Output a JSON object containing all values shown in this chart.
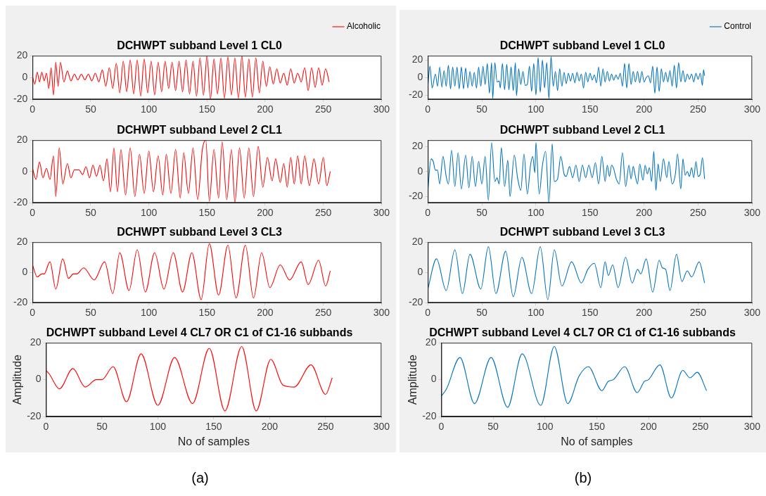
{
  "chart_data": [
    {
      "type": "line",
      "title": "DCHWPT subband Level 1 CL0",
      "legend": "top right",
      "xlim": [
        0,
        300
      ],
      "xticks": [
        0,
        50,
        100,
        150,
        200,
        250,
        300
      ],
      "ylim": [
        -20,
        20
      ],
      "yticks": [
        -20,
        0,
        20
      ],
      "series": [
        {
          "name": "Alcoholic",
          "color": "#ff0000",
          "x": [
            0,
            2,
            4,
            6,
            8,
            10,
            12,
            14,
            16,
            18,
            20,
            22,
            24,
            27,
            30,
            33,
            36,
            39,
            42,
            45,
            48,
            51,
            54,
            57,
            60,
            63,
            66,
            69,
            72,
            75,
            78,
            81,
            84,
            87,
            90,
            93,
            96,
            99,
            102,
            105,
            108,
            111,
            114,
            117,
            120,
            123,
            126,
            129,
            132,
            135,
            138,
            141,
            144,
            147,
            150,
            153,
            156,
            159,
            162,
            165,
            168,
            171,
            174,
            177,
            180,
            183,
            186,
            189,
            192,
            195,
            198,
            201,
            204,
            207,
            210,
            213,
            216,
            219,
            222,
            225,
            228,
            231,
            234,
            237,
            240,
            243,
            246,
            249,
            252,
            255
          ],
          "values": [
            1,
            -6,
            5,
            -4,
            5,
            -3,
            4,
            -10,
            9,
            -16,
            14,
            -8,
            14,
            -4,
            6,
            -3,
            3,
            -2,
            3,
            -2,
            3,
            -3,
            4,
            -4,
            7,
            -8,
            9,
            -10,
            13,
            -14,
            15,
            -13,
            16,
            -15,
            16,
            -17,
            17,
            -14,
            15,
            -16,
            14,
            -13,
            15,
            -10,
            14,
            -12,
            15,
            -13,
            16,
            -15,
            15,
            -17,
            18,
            -16,
            20,
            -20,
            17,
            -15,
            18,
            -19,
            19,
            -16,
            18,
            -19,
            20,
            -18,
            17,
            -18,
            18,
            -14,
            15,
            -8,
            10,
            -6,
            8,
            -5,
            4,
            -7,
            8,
            -5,
            4,
            -4,
            9,
            -12,
            9,
            -9,
            9,
            -7,
            8,
            -4
          ]
        }
      ]
    },
    {
      "type": "line",
      "title": "DCHWPT subband Level 2 CL1",
      "xlim": [
        0,
        300
      ],
      "xticks": [
        0,
        50,
        100,
        150,
        200,
        250,
        300
      ],
      "ylim": [
        -20,
        20
      ],
      "yticks": [
        -20,
        0,
        20
      ],
      "series": [
        {
          "color": "#ff0000",
          "x": [
            0,
            3,
            6,
            9,
            12,
            15,
            18,
            20,
            23,
            26,
            30,
            33,
            36,
            40,
            43,
            46,
            49,
            52,
            55,
            58,
            61,
            64,
            67,
            70,
            73,
            76,
            80,
            84,
            88,
            92,
            96,
            100,
            104,
            108,
            112,
            115,
            119,
            123,
            127,
            130,
            134,
            138,
            142,
            146,
            149,
            152,
            156,
            160,
            163,
            167,
            171,
            174,
            178,
            182,
            186,
            190,
            194,
            198,
            202,
            206,
            209,
            213,
            216,
            219,
            222,
            225,
            228,
            231,
            234,
            238,
            242,
            246,
            250,
            253,
            256
          ],
          "values": [
            2,
            -5,
            6,
            -4,
            2,
            -5,
            10,
            -16,
            15,
            -8,
            5,
            -4,
            1,
            1,
            -2,
            3,
            -4,
            4,
            -3,
            4,
            -6,
            8,
            -13,
            15,
            -13,
            14,
            -15,
            15,
            -16,
            11,
            -14,
            13,
            -13,
            10,
            -15,
            11,
            -14,
            14,
            -17,
            12,
            -14,
            15,
            -18,
            14,
            20,
            -19,
            14,
            -17,
            19,
            -18,
            14,
            -20,
            15,
            -17,
            15,
            -16,
            16,
            -10,
            9,
            -6,
            8,
            -7,
            5,
            -10,
            9,
            -8,
            10,
            -8,
            10,
            -9,
            8,
            -8,
            9,
            -9,
            0
          ]
        }
      ]
    },
    {
      "type": "line",
      "title": "DCHWPT subband Level 3 CL3",
      "xlim": [
        0,
        300
      ],
      "xticks": [
        0,
        50,
        100,
        150,
        200,
        250,
        300
      ],
      "ylim": [
        -20,
        20
      ],
      "yticks": [
        -20,
        0,
        20
      ],
      "series": [
        {
          "color": "#ff0000",
          "x": [
            0,
            4,
            8,
            10,
            15,
            20,
            26,
            31,
            35,
            38,
            44,
            53,
            62,
            69,
            75,
            83,
            90,
            97,
            105,
            113,
            121,
            129,
            137,
            145,
            152,
            160,
            168,
            175,
            183,
            190,
            197,
            204,
            213,
            221,
            231,
            237,
            246,
            252,
            256
          ],
          "values": [
            5,
            -3,
            -1,
            -1,
            7,
            -11,
            9,
            -4,
            -1,
            -1,
            3,
            -5,
            7,
            -14,
            13,
            -12,
            15,
            -13,
            13,
            -11,
            13,
            -13,
            13,
            -18,
            19,
            -15,
            18,
            -17,
            18,
            -17,
            13,
            -10,
            5,
            -5,
            7,
            -8,
            8,
            -9,
            1
          ]
        }
      ]
    },
    {
      "type": "line",
      "title": "DCHWPT subband Level 4 CL7 OR C1 of C1-16 subbands",
      "xlabel": "No of samples",
      "ylabel": "Amplitude",
      "xlim": [
        0,
        300
      ],
      "xticks": [
        0,
        50,
        100,
        150,
        200,
        250,
        300
      ],
      "ylim": [
        -20,
        20
      ],
      "yticks": [
        -20,
        0,
        20
      ],
      "annotations": [
        "(a)"
      ],
      "series": [
        {
          "color": "#ff0000",
          "x": [
            0,
            3,
            12,
            24,
            35,
            45,
            50,
            60,
            72,
            85,
            100,
            115,
            131,
            146,
            160,
            175,
            188,
            201,
            212,
            222,
            237,
            250,
            256
          ],
          "values": [
            5,
            3,
            -5,
            6,
            -4,
            0,
            0,
            7,
            -12,
            14,
            -14,
            12,
            -13,
            17,
            -17,
            18,
            -17,
            11,
            -3,
            -4,
            8,
            -8,
            1
          ]
        }
      ]
    },
    {
      "type": "line",
      "title": "DCHWPT subband Level 1 CL0",
      "legend": "top right",
      "xlim": [
        0,
        300
      ],
      "xticks": [
        0,
        50,
        100,
        150,
        200,
        250,
        300
      ],
      "ylim": [
        -25,
        25
      ],
      "yticks": [
        -20,
        0,
        20
      ],
      "series": [
        {
          "name": "Control",
          "color": "#0072bd",
          "x": [
            0,
            2,
            4,
            7,
            9,
            11,
            13,
            15,
            17,
            19,
            21,
            23,
            25,
            27,
            29,
            31,
            33,
            35,
            37,
            39,
            41,
            43,
            45,
            47,
            49,
            51,
            53,
            55,
            57,
            59,
            60,
            62,
            64,
            66,
            67,
            69,
            71,
            73,
            75,
            77,
            79,
            81,
            82,
            84,
            86,
            88,
            90,
            92,
            94,
            96,
            98,
            100,
            102,
            104,
            106,
            108,
            110,
            112,
            114,
            116,
            118,
            120,
            122,
            124,
            126,
            128,
            130,
            132,
            134,
            136,
            138,
            140,
            142,
            144,
            146,
            148,
            150,
            152,
            154,
            156,
            158,
            160,
            162,
            164,
            166,
            168,
            170,
            172,
            174,
            176,
            178,
            180,
            182,
            184,
            186,
            188,
            190,
            192,
            194,
            196,
            198,
            200,
            202,
            204,
            206,
            208,
            210,
            212,
            214,
            216,
            218,
            220,
            222,
            224,
            226,
            228,
            230,
            232,
            234,
            236,
            238,
            240,
            242,
            244,
            246,
            248,
            250,
            252,
            254,
            255,
            256
          ],
          "values": [
            -10,
            13,
            -12,
            4,
            -10,
            12,
            -11,
            8,
            -10,
            14,
            -13,
            12,
            -10,
            12,
            -13,
            12,
            -13,
            11,
            -12,
            7,
            -10,
            6,
            -12,
            12,
            -10,
            13,
            -8,
            16,
            -18,
            17,
            -24,
            17,
            -5,
            -4,
            -12,
            16,
            -14,
            15,
            -14,
            12,
            -15,
            17,
            -21,
            10,
            -8,
            7,
            -9,
            -8,
            13,
            -16,
            16,
            -20,
            23,
            -17,
            20,
            -12,
            17,
            -24,
            24,
            -10,
            7,
            -15,
            10,
            -10,
            6,
            -7,
            5,
            -4,
            5,
            -6,
            6,
            -4,
            4,
            -12,
            6,
            -5,
            5,
            -3,
            3,
            -6,
            12,
            -10,
            10,
            -5,
            7,
            -4,
            4,
            -3,
            3,
            -2,
            5,
            -10,
            16,
            -12,
            16,
            -8,
            7,
            -5,
            7,
            -6,
            7,
            -5,
            0,
            2,
            -6,
            13,
            -18,
            12,
            -16,
            10,
            -5,
            6,
            -5,
            8,
            -10,
            14,
            -12,
            17,
            -5,
            8,
            -5,
            4,
            -2,
            4,
            -5,
            5,
            -2,
            5,
            -9,
            9,
            2
          ]
        }
      ]
    },
    {
      "type": "line",
      "title": "DCHWPT subband Level 2 CL1",
      "xlim": [
        0,
        300
      ],
      "xticks": [
        0,
        50,
        100,
        150,
        200,
        250,
        300
      ],
      "ylim": [
        -25,
        25
      ],
      "yticks": [
        -20,
        0,
        20
      ],
      "series": [
        {
          "color": "#0072bd",
          "x": [
            0,
            3,
            5,
            7,
            9,
            11,
            14,
            17,
            19,
            22,
            25,
            28,
            31,
            35,
            38,
            41,
            44,
            47,
            50,
            53,
            56,
            59,
            62,
            64,
            66,
            68,
            71,
            74,
            76,
            80,
            83,
            86,
            89,
            92,
            95,
            97,
            99,
            100,
            103,
            106,
            109,
            112,
            115,
            117,
            120,
            123,
            126,
            128,
            131,
            134,
            137,
            140,
            143,
            146,
            149,
            152,
            155,
            158,
            161,
            164,
            166,
            168,
            170,
            172,
            174,
            177,
            180,
            183,
            186,
            188,
            190,
            192,
            194,
            196,
            199,
            201,
            203,
            205,
            207,
            209,
            211,
            213,
            215,
            218,
            221,
            223,
            226,
            229,
            231,
            234,
            236,
            238,
            240,
            242,
            244,
            246,
            248,
            250,
            252,
            254,
            256
          ],
          "values": [
            -15,
            10,
            8,
            1,
            1,
            -10,
            12,
            -4,
            -10,
            17,
            -12,
            15,
            -14,
            13,
            -13,
            12,
            -12,
            8,
            -10,
            12,
            -23,
            23,
            -8,
            -5,
            -10,
            19,
            -12,
            9,
            -20,
            13,
            -5,
            -15,
            14,
            -18,
            5,
            12,
            -1,
            23,
            -18,
            5,
            16,
            -25,
            22,
            -8,
            -6,
            12,
            -2,
            -4,
            4,
            -5,
            5,
            -8,
            5,
            -5,
            5,
            -5,
            7,
            -10,
            12,
            -8,
            5,
            -4,
            5,
            2,
            -5,
            -10,
            15,
            -12,
            5,
            -6,
            4,
            -4,
            -10,
            6,
            -7,
            5,
            -2,
            3,
            -8,
            16,
            -15,
            6,
            -8,
            10,
            -5,
            8,
            -10,
            -2,
            14,
            -14,
            10,
            -3,
            0,
            -4,
            3,
            -5,
            8,
            -4,
            -2,
            11,
            -6
          ]
        }
      ]
    },
    {
      "type": "line",
      "title": "DCHWPT subband Level 3 CL3",
      "xlim": [
        0,
        300
      ],
      "xticks": [
        0,
        50,
        100,
        150,
        200,
        250,
        300
      ],
      "ylim": [
        -20,
        20
      ],
      "yticks": [
        -20,
        0,
        20
      ],
      "series": [
        {
          "color": "#0072bd",
          "x": [
            0,
            8,
            17,
            25,
            32,
            39,
            49,
            56,
            63,
            72,
            79,
            87,
            96,
            104,
            111,
            117,
            124,
            133,
            142,
            148,
            154,
            160,
            164,
            167,
            171,
            176,
            183,
            189,
            194,
            197,
            202,
            208,
            214,
            217,
            220,
            224,
            230,
            235,
            240,
            244,
            251,
            256
          ],
          "values": [
            -11,
            9,
            -12,
            15,
            -14,
            12,
            -11,
            17,
            -14,
            14,
            -16,
            10,
            -14,
            17,
            -18,
            15,
            -9,
            7,
            -7,
            2,
            6,
            -10,
            7,
            -2,
            5,
            -10,
            10,
            -7,
            2,
            -1,
            9,
            -13,
            8,
            3,
            2,
            -12,
            12,
            -6,
            1,
            -3,
            7,
            -7
          ]
        }
      ]
    },
    {
      "type": "line",
      "title": "DCHWPT subband Level 4 CL7 OR C1 of C1-16 subbands",
      "xlabel": "No of samples",
      "ylabel": "Amplitude",
      "xlim": [
        0,
        300
      ],
      "xticks": [
        0,
        50,
        100,
        150,
        200,
        250,
        300
      ],
      "ylim": [
        -20,
        20
      ],
      "yticks": [
        -20,
        0,
        20
      ],
      "annotations": [
        "(b)"
      ],
      "series": [
        {
          "color": "#0072bd",
          "x": [
            0,
            5,
            18,
            32,
            48,
            64,
            78,
            96,
            109,
            122,
            133,
            142,
            155,
            161,
            166,
            177,
            189,
            196,
            200,
            211,
            222,
            233,
            240,
            247,
            256
          ],
          "values": [
            -9,
            -5,
            12,
            -13,
            12,
            -15,
            14,
            -14,
            18,
            -13,
            2,
            7,
            -6,
            -1,
            0,
            7,
            -7,
            -1,
            0,
            8,
            -10,
            5,
            1,
            4,
            -6
          ]
        }
      ]
    }
  ]
}
